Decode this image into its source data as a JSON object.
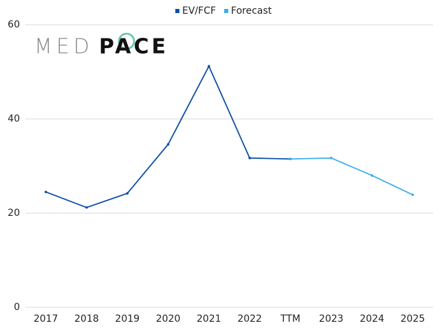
{
  "chart_data": {
    "type": "line",
    "logo": {
      "left": "MED",
      "right": "PACE"
    },
    "categories": [
      "2017",
      "2018",
      "2019",
      "2020",
      "2021",
      "2022",
      "TTM",
      "2023",
      "2024",
      "2025"
    ],
    "series": [
      {
        "name": "EV/FCF",
        "color": "#0d4ea6",
        "values": [
          24.5,
          21.2,
          24.2,
          34.6,
          51.2,
          31.7,
          31.5,
          null,
          null,
          null
        ]
      },
      {
        "name": "Forecast",
        "color": "#3eaee8",
        "values": [
          null,
          null,
          null,
          null,
          null,
          null,
          31.5,
          31.7,
          28.0,
          23.9
        ]
      }
    ],
    "ylim": [
      0,
      60
    ],
    "yticks": [
      0,
      20,
      40,
      60
    ],
    "grid": true,
    "legend": "top"
  }
}
